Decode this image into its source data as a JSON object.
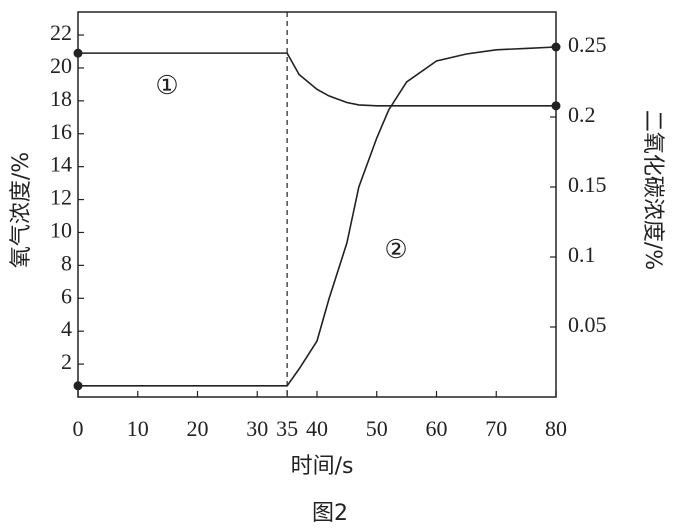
{
  "chart_data": {
    "type": "line",
    "x_label": "时间/s",
    "y_label": "氧气浓度/%",
    "y2_label": "二氧化碳浓度/%",
    "caption": "图2",
    "annotations": [
      "①",
      "②"
    ],
    "x": [
      0,
      35,
      37,
      40,
      42,
      45,
      47,
      50,
      52,
      55,
      60,
      65,
      70,
      75,
      80
    ],
    "series": [
      {
        "name": "①",
        "color": "#222",
        "values": [
          20.9,
          20.9,
          19.6,
          18.7,
          18.3,
          17.9,
          17.75,
          17.7,
          17.7,
          17.7,
          17.7,
          17.7,
          17.7,
          17.7,
          17.7
        ]
      },
      {
        "name": "②",
        "color": "#222",
        "axis": "y2",
        "values": [
          0.008,
          0.008,
          0.02,
          0.04,
          0.07,
          0.11,
          0.15,
          0.185,
          0.205,
          0.225,
          0.24,
          0.245,
          0.248,
          0.249,
          0.25
        ]
      }
    ],
    "xlim": [
      0,
      80
    ],
    "xticks": [
      0,
      10,
      20,
      30,
      35,
      40,
      50,
      60,
      70,
      80
    ],
    "ylim": [
      0,
      23.4
    ],
    "yticks": [
      2,
      4,
      6,
      8,
      10,
      12,
      14,
      16,
      18,
      20,
      22
    ],
    "y2lim": [
      0,
      0.275
    ],
    "y2ticks": [
      0.05,
      0.1,
      0.15,
      0.2,
      0.25
    ],
    "vline": 35
  }
}
